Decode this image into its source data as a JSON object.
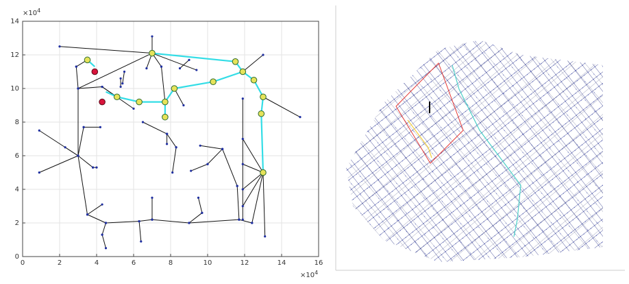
{
  "chart_data": {
    "type": "network",
    "xlim": [
      0,
      16
    ],
    "ylim": [
      0,
      14
    ],
    "xticks": [
      0,
      2,
      4,
      6,
      8,
      10,
      12,
      14,
      16
    ],
    "yticks": [
      0,
      2,
      4,
      6,
      8,
      10,
      12,
      14
    ],
    "grid": true,
    "x_multiplier": {
      "base": "×10",
      "exponent": "4"
    },
    "y_multiplier": {
      "base": "×10",
      "exponent": "4"
    },
    "pipes": {
      "color": "#111111",
      "segments": [
        [
          2.0,
          12.5,
          7.0,
          12.1
        ],
        [
          7.0,
          12.1,
          7.0,
          13.1
        ],
        [
          7.0,
          12.1,
          3.0,
          10.0
        ],
        [
          3.0,
          10.0,
          3.0,
          6.0
        ],
        [
          3.0,
          10.0,
          2.9,
          11.3
        ],
        [
          2.9,
          11.3,
          3.5,
          11.7
        ],
        [
          3.0,
          10.0,
          4.3,
          10.1
        ],
        [
          4.3,
          10.1,
          6.0,
          8.8
        ],
        [
          4.3,
          10.1,
          5.1,
          9.5
        ],
        [
          3.0,
          6.0,
          0.9,
          7.5
        ],
        [
          3.0,
          6.0,
          0.9,
          5.0
        ],
        [
          3.0,
          6.0,
          2.3,
          6.5
        ],
        [
          3.0,
          6.0,
          3.5,
          2.5
        ],
        [
          3.5,
          2.5,
          4.5,
          2.0
        ],
        [
          3.0,
          6.0,
          3.3,
          7.7
        ],
        [
          3.3,
          7.7,
          4.2,
          7.7
        ],
        [
          3.0,
          6.0,
          3.8,
          5.3
        ],
        [
          3.8,
          5.3,
          4.0,
          5.3
        ],
        [
          4.5,
          2.0,
          4.3,
          1.3
        ],
        [
          4.3,
          1.3,
          4.5,
          0.5
        ],
        [
          3.5,
          2.5,
          4.3,
          3.1
        ],
        [
          4.5,
          2.0,
          6.3,
          2.1
        ],
        [
          6.3,
          2.1,
          7.0,
          2.2
        ],
        [
          7.0,
          2.2,
          9.0,
          2.0
        ],
        [
          9.0,
          2.0,
          11.7,
          2.2
        ],
        [
          11.7,
          2.2,
          12.4,
          2.0
        ],
        [
          12.4,
          2.0,
          13.0,
          5.0
        ],
        [
          7.0,
          2.2,
          7.0,
          3.5
        ],
        [
          6.3,
          2.1,
          6.4,
          0.9
        ],
        [
          9.0,
          2.0,
          9.7,
          2.6
        ],
        [
          9.7,
          2.6,
          9.5,
          3.5
        ],
        [
          11.7,
          2.2,
          11.6,
          4.2
        ],
        [
          11.6,
          4.2,
          10.8,
          6.4
        ],
        [
          10.8,
          6.4,
          9.6,
          6.6
        ],
        [
          10.8,
          6.4,
          10.0,
          5.5
        ],
        [
          10.0,
          5.5,
          9.1,
          5.1
        ],
        [
          11.9,
          9.4,
          11.9,
          2.2
        ],
        [
          13.0,
          5.0,
          13.1,
          1.2
        ],
        [
          13.0,
          5.0,
          11.9,
          7.0
        ],
        [
          13.0,
          5.0,
          11.9,
          5.5
        ],
        [
          13.0,
          5.0,
          11.9,
          4.0
        ],
        [
          13.0,
          5.0,
          11.9,
          3.0
        ],
        [
          13.0,
          9.5,
          15.0,
          8.3
        ],
        [
          11.9,
          11.0,
          13.0,
          12.0
        ],
        [
          7.0,
          12.1,
          9.4,
          11.1
        ],
        [
          8.5,
          11.2,
          9.0,
          11.7
        ],
        [
          7.0,
          12.1,
          6.7,
          11.2
        ],
        [
          7.0,
          12.1,
          7.5,
          11.3
        ],
        [
          7.5,
          11.3,
          7.7,
          9.2
        ],
        [
          8.2,
          10.0,
          8.7,
          9.0
        ],
        [
          6.5,
          8.0,
          7.8,
          7.3
        ],
        [
          7.8,
          7.3,
          8.3,
          6.5
        ],
        [
          8.3,
          6.5,
          8.1,
          5.0
        ],
        [
          7.8,
          7.3,
          7.8,
          6.7
        ],
        [
          5.5,
          11.0,
          5.4,
          10.3
        ],
        [
          5.3,
          10.6,
          5.3,
          10.1
        ]
      ]
    },
    "path": {
      "color": "#33dde6",
      "segments": [
        [
          3.5,
          11.7,
          3.9,
          11.3
        ],
        [
          7.0,
          12.1,
          11.5,
          11.6
        ],
        [
          11.5,
          11.6,
          11.9,
          11.0
        ],
        [
          11.9,
          11.0,
          12.5,
          10.5
        ],
        [
          12.5,
          10.5,
          13.0,
          9.5
        ],
        [
          13.0,
          9.5,
          12.9,
          8.5
        ],
        [
          12.9,
          8.5,
          13.0,
          5.0
        ],
        [
          11.9,
          11.0,
          10.3,
          10.4
        ],
        [
          10.3,
          10.4,
          8.2,
          10.0
        ],
        [
          8.2,
          10.0,
          7.7,
          9.2
        ],
        [
          7.7,
          9.2,
          7.7,
          8.3
        ],
        [
          7.7,
          9.2,
          6.3,
          9.2
        ],
        [
          6.3,
          9.2,
          5.1,
          9.5
        ],
        [
          5.1,
          9.5,
          4.5,
          9.8
        ]
      ]
    },
    "sensors": {
      "color": "#e6e35a",
      "x": [
        3.5,
        7.0,
        11.5,
        11.9,
        12.5,
        13.0,
        12.9,
        13.0,
        10.3,
        8.2,
        7.7,
        7.7,
        6.3,
        5.1
      ],
      "y": [
        11.7,
        12.1,
        11.6,
        11.0,
        10.5,
        9.5,
        8.5,
        5.0,
        10.4,
        10.0,
        9.2,
        8.3,
        9.2,
        9.5
      ]
    },
    "sources": {
      "color": "#d8143c",
      "x": [
        3.9,
        4.3
      ],
      "y": [
        11.0,
        9.2
      ]
    }
  }
}
